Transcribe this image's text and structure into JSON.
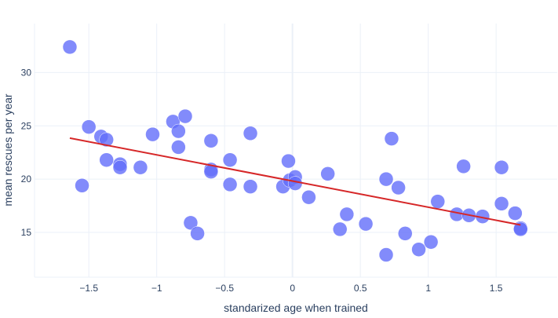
{
  "chart_data": {
    "type": "scatter",
    "xlabel": "standarized age when trained",
    "ylabel": "mean rescues per year",
    "xlim": [
      -1.9,
      1.95
    ],
    "ylim": [
      10.8,
      34.6
    ],
    "x_ticks": [
      -1.5,
      -1,
      -0.5,
      0,
      0.5,
      1,
      1.5
    ],
    "x_tick_labels": [
      "−1.5",
      "−1",
      "−0.5",
      "0",
      "0.5",
      "1",
      "1.5"
    ],
    "y_ticks": [
      15,
      20,
      25,
      30
    ],
    "y_tick_labels": [
      "15",
      "20",
      "25",
      "30"
    ],
    "grid": true,
    "legend": "none",
    "marker_color": "#636efa",
    "marker_opacity": 0.8,
    "trendline_color": "#d62728",
    "points": [
      {
        "x": -1.64,
        "y": 32.4
      },
      {
        "x": -1.55,
        "y": 19.4
      },
      {
        "x": -1.5,
        "y": 24.9
      },
      {
        "x": -1.41,
        "y": 24.0
      },
      {
        "x": -1.37,
        "y": 23.7
      },
      {
        "x": -1.37,
        "y": 21.8
      },
      {
        "x": -1.27,
        "y": 21.4
      },
      {
        "x": -1.27,
        "y": 21.1
      },
      {
        "x": -1.12,
        "y": 21.1
      },
      {
        "x": -1.03,
        "y": 24.2
      },
      {
        "x": -0.88,
        "y": 25.4
      },
      {
        "x": -0.84,
        "y": 24.5
      },
      {
        "x": -0.84,
        "y": 23.0
      },
      {
        "x": -0.79,
        "y": 25.9
      },
      {
        "x": -0.75,
        "y": 15.9
      },
      {
        "x": -0.7,
        "y": 14.9
      },
      {
        "x": -0.6,
        "y": 23.6
      },
      {
        "x": -0.6,
        "y": 20.9
      },
      {
        "x": -0.6,
        "y": 20.7
      },
      {
        "x": -0.46,
        "y": 21.8
      },
      {
        "x": -0.46,
        "y": 19.5
      },
      {
        "x": -0.31,
        "y": 24.3
      },
      {
        "x": -0.31,
        "y": 19.3
      },
      {
        "x": -0.07,
        "y": 19.3
      },
      {
        "x": -0.03,
        "y": 21.7
      },
      {
        "x": -0.02,
        "y": 19.9
      },
      {
        "x": 0.02,
        "y": 20.2
      },
      {
        "x": 0.02,
        "y": 19.6
      },
      {
        "x": 0.12,
        "y": 18.3
      },
      {
        "x": 0.26,
        "y": 20.5
      },
      {
        "x": 0.35,
        "y": 15.3
      },
      {
        "x": 0.4,
        "y": 16.7
      },
      {
        "x": 0.54,
        "y": 15.8
      },
      {
        "x": 0.69,
        "y": 20.0
      },
      {
        "x": 0.69,
        "y": 12.9
      },
      {
        "x": 0.73,
        "y": 23.8
      },
      {
        "x": 0.78,
        "y": 19.2
      },
      {
        "x": 0.83,
        "y": 14.9
      },
      {
        "x": 0.93,
        "y": 13.4
      },
      {
        "x": 1.02,
        "y": 14.1
      },
      {
        "x": 1.07,
        "y": 17.9
      },
      {
        "x": 1.21,
        "y": 16.7
      },
      {
        "x": 1.26,
        "y": 21.2
      },
      {
        "x": 1.3,
        "y": 16.6
      },
      {
        "x": 1.4,
        "y": 16.5
      },
      {
        "x": 1.54,
        "y": 21.1
      },
      {
        "x": 1.54,
        "y": 17.7
      },
      {
        "x": 1.64,
        "y": 16.8
      },
      {
        "x": 1.68,
        "y": 15.4
      },
      {
        "x": 1.68,
        "y": 15.3
      }
    ],
    "trendline": {
      "x": [
        -1.64,
        1.68
      ],
      "y": [
        23.85,
        15.7
      ]
    }
  }
}
